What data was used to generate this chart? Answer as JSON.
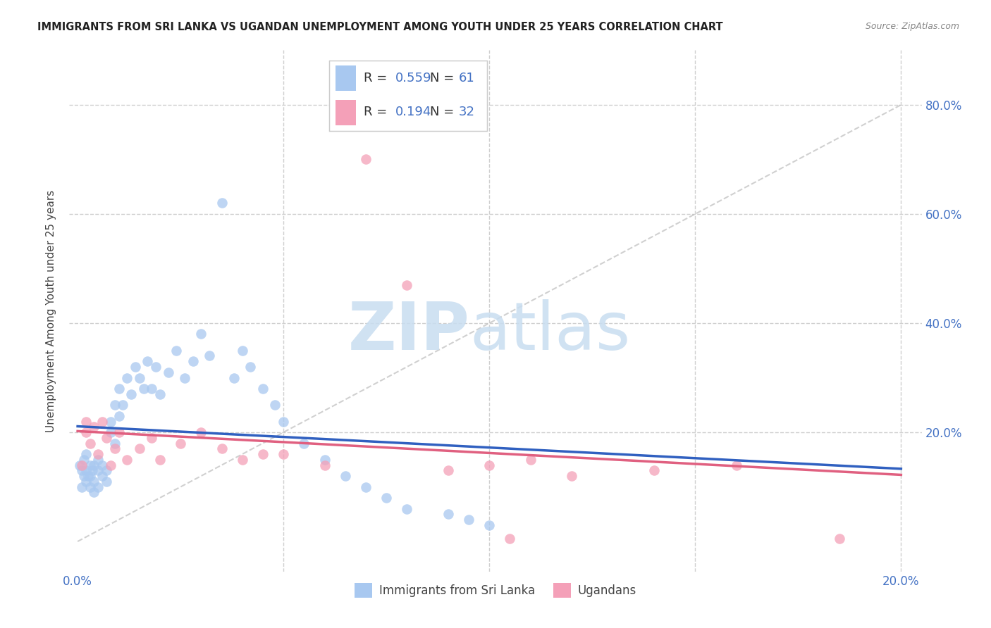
{
  "title": "IMMIGRANTS FROM SRI LANKA VS UGANDAN UNEMPLOYMENT AMONG YOUTH UNDER 25 YEARS CORRELATION CHART",
  "source": "Source: ZipAtlas.com",
  "ylabel": "Unemployment Among Youth under 25 years",
  "legend_label1": "Immigrants from Sri Lanka",
  "legend_label2": "Ugandans",
  "R1": 0.559,
  "N1": 61,
  "R2": 0.194,
  "N2": 32,
  "color_blue": "#a8c8f0",
  "color_pink": "#f4a0b8",
  "color_blue_line": "#3060c0",
  "color_pink_line": "#e06080",
  "color_diag": "#b8b8b8",
  "color_text_blue": "#4472c4",
  "color_tick": "#4472c4",
  "color_grid": "#d0d0d0",
  "color_title": "#222222",
  "color_source": "#888888",
  "color_watermark_zip": "#c8ddf0",
  "color_watermark_atlas": "#c8ddf0",
  "watermark_zip": "ZIP",
  "watermark_atlas": "atlas",
  "xlim_min": -0.002,
  "xlim_max": 0.205,
  "ylim_min": -0.055,
  "ylim_max": 0.9,
  "blue_x": [
    0.0005,
    0.001,
    0.001,
    0.0015,
    0.0015,
    0.002,
    0.002,
    0.002,
    0.0025,
    0.003,
    0.003,
    0.003,
    0.0035,
    0.004,
    0.004,
    0.004,
    0.005,
    0.005,
    0.005,
    0.006,
    0.006,
    0.007,
    0.007,
    0.008,
    0.008,
    0.009,
    0.009,
    0.01,
    0.01,
    0.011,
    0.012,
    0.013,
    0.014,
    0.015,
    0.016,
    0.017,
    0.018,
    0.019,
    0.02,
    0.022,
    0.024,
    0.026,
    0.028,
    0.03,
    0.032,
    0.035,
    0.038,
    0.04,
    0.042,
    0.045,
    0.048,
    0.05,
    0.055,
    0.06,
    0.065,
    0.07,
    0.075,
    0.08,
    0.09,
    0.095,
    0.1
  ],
  "blue_y": [
    0.14,
    0.1,
    0.13,
    0.12,
    0.15,
    0.11,
    0.13,
    0.16,
    0.12,
    0.1,
    0.14,
    0.12,
    0.13,
    0.09,
    0.11,
    0.14,
    0.1,
    0.13,
    0.15,
    0.12,
    0.14,
    0.11,
    0.13,
    0.2,
    0.22,
    0.18,
    0.25,
    0.23,
    0.28,
    0.25,
    0.3,
    0.27,
    0.32,
    0.3,
    0.28,
    0.33,
    0.28,
    0.32,
    0.27,
    0.31,
    0.35,
    0.3,
    0.33,
    0.38,
    0.34,
    0.62,
    0.3,
    0.35,
    0.32,
    0.28,
    0.25,
    0.22,
    0.18,
    0.15,
    0.12,
    0.1,
    0.08,
    0.06,
    0.05,
    0.04,
    0.03
  ],
  "pink_x": [
    0.001,
    0.002,
    0.002,
    0.003,
    0.004,
    0.005,
    0.006,
    0.007,
    0.008,
    0.009,
    0.01,
    0.012,
    0.015,
    0.018,
    0.02,
    0.025,
    0.03,
    0.035,
    0.04,
    0.045,
    0.05,
    0.06,
    0.07,
    0.08,
    0.09,
    0.1,
    0.11,
    0.12,
    0.14,
    0.16,
    0.105,
    0.185
  ],
  "pink_y": [
    0.14,
    0.2,
    0.22,
    0.18,
    0.21,
    0.16,
    0.22,
    0.19,
    0.14,
    0.17,
    0.2,
    0.15,
    0.17,
    0.19,
    0.15,
    0.18,
    0.2,
    0.17,
    0.15,
    0.16,
    0.16,
    0.14,
    0.7,
    0.47,
    0.13,
    0.14,
    0.15,
    0.12,
    0.13,
    0.14,
    0.005,
    0.005
  ]
}
